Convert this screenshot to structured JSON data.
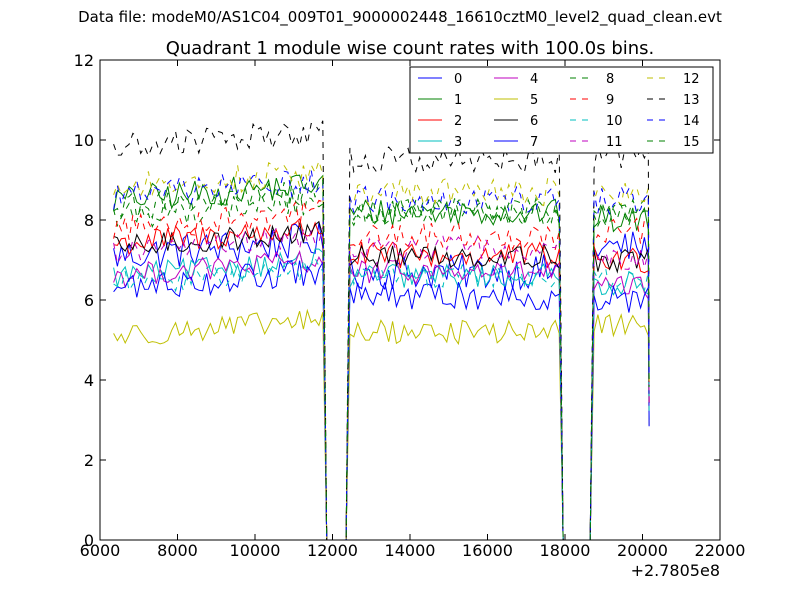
{
  "figure": {
    "supertitle": "Data file: modeM0/AS1C04_009T01_9000002448_16610cztM0_level2_quad_clean.evt"
  },
  "chart_data": {
    "type": "line",
    "title": "Quadrant 1 module wise count rates with 100.0s bins.",
    "xlabel": "",
    "ylabel": "",
    "xlim": [
      6000,
      22000
    ],
    "ylim": [
      0,
      12
    ],
    "x_offset_label": "+2.7805e8",
    "xticks": [
      "6000",
      "8000",
      "10000",
      "12000",
      "14000",
      "16000",
      "18000",
      "20000",
      "22000"
    ],
    "yticks": [
      "0",
      "2",
      "4",
      "6",
      "8",
      "10",
      "12"
    ],
    "grid": false,
    "legend_position": "top-right",
    "segments": [
      [
        6350,
        11750
      ],
      [
        12450,
        17850
      ],
      [
        18750,
        20150
      ]
    ],
    "x_step": 100,
    "series": [
      {
        "name": "0",
        "color": "#0000ff",
        "style": "solid",
        "level": 7.1,
        "p2": 6.7,
        "p3": 7.3,
        "amp": 0.45
      },
      {
        "name": "1",
        "color": "#008000",
        "style": "solid",
        "level": 8.5,
        "p2": 8.2,
        "p3": 8.0,
        "amp": 0.35
      },
      {
        "name": "2",
        "color": "#ff0000",
        "style": "solid",
        "level": 7.4,
        "p2": 7.1,
        "p3": 7.0,
        "amp": 0.35
      },
      {
        "name": "3",
        "color": "#00bfbf",
        "style": "solid",
        "level": 6.6,
        "p2": 6.6,
        "p3": 6.4,
        "amp": 0.3
      },
      {
        "name": "4",
        "color": "#bf00bf",
        "style": "solid",
        "level": 6.6,
        "p2": 6.7,
        "p3": 6.3,
        "amp": 0.3
      },
      {
        "name": "5",
        "color": "#bfbf00",
        "style": "solid",
        "level": 5.1,
        "p2": 5.2,
        "p3": 5.4,
        "amp": 0.3
      },
      {
        "name": "6",
        "color": "#000000",
        "style": "solid",
        "level": 7.3,
        "p2": 7.1,
        "p3": 7.0,
        "amp": 0.3
      },
      {
        "name": "7",
        "color": "#0000ff",
        "style": "solid",
        "level": 6.3,
        "p2": 6.1,
        "p3": 6.0,
        "amp": 0.35
      },
      {
        "name": "8",
        "color": "#008000",
        "style": "dashed",
        "level": 8.1,
        "p2": 8.2,
        "p3": 8.3,
        "amp": 0.35
      },
      {
        "name": "9",
        "color": "#ff0000",
        "style": "dashed",
        "level": 7.8,
        "p2": 7.6,
        "p3": 7.7,
        "amp": 0.35
      },
      {
        "name": "10",
        "color": "#00bfbf",
        "style": "dashed",
        "level": 6.4,
        "p2": 6.6,
        "p3": 6.5,
        "amp": 0.3
      },
      {
        "name": "11",
        "color": "#bf00bf",
        "style": "dashed",
        "level": 7.2,
        "p2": 7.3,
        "p3": 7.0,
        "amp": 0.3
      },
      {
        "name": "12",
        "color": "#bfbf00",
        "style": "dashed",
        "level": 8.8,
        "p2": 8.7,
        "p3": 8.6,
        "amp": 0.35
      },
      {
        "name": "13",
        "color": "#000000",
        "style": "dashed",
        "level": 9.8,
        "p2": 9.5,
        "p3": 9.6,
        "amp": 0.35
      },
      {
        "name": "14",
        "color": "#0000ff",
        "style": "dashed",
        "level": 8.6,
        "p2": 8.5,
        "p3": 8.5,
        "amp": 0.35
      },
      {
        "name": "15",
        "color": "#008000",
        "style": "dashed",
        "level": 8.3,
        "p2": 8.2,
        "p3": 8.1,
        "amp": 0.35
      }
    ]
  }
}
